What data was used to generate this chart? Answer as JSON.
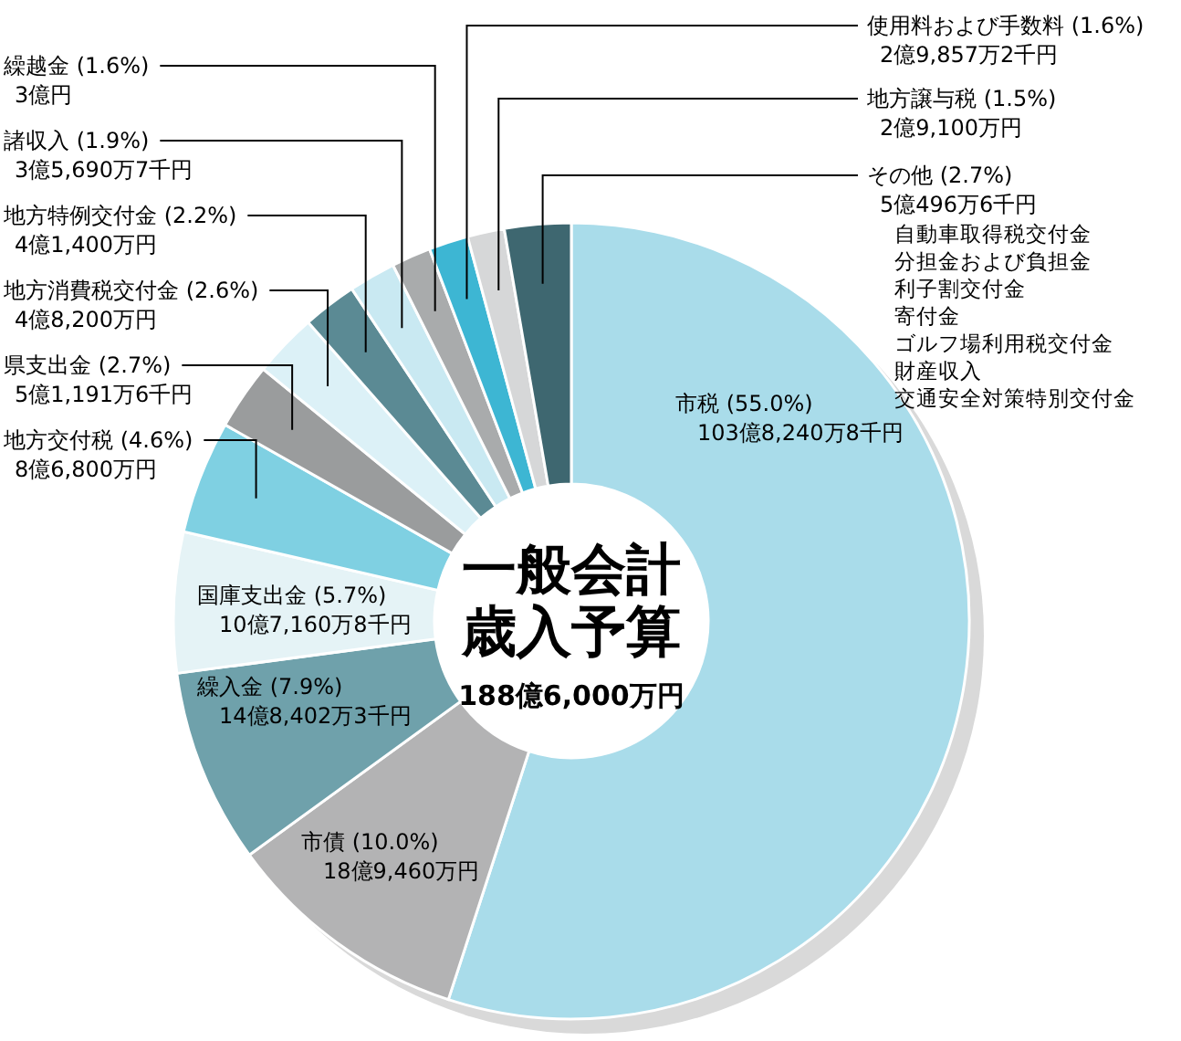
{
  "chart_data": {
    "type": "donut",
    "title": "一般会計歳入予算",
    "subtitle": "188億6,000万円",
    "categories": [
      "市税",
      "市債",
      "繰入金",
      "国庫支出金",
      "地方交付税",
      "県支出金",
      "地方消費税交付金",
      "地方特例交付金",
      "諸収入",
      "繰越金",
      "使用料および手数料",
      "地方譲与税",
      "その他"
    ],
    "values": [
      55.0,
      10.0,
      7.9,
      5.7,
      4.6,
      2.7,
      2.6,
      2.2,
      1.9,
      1.6,
      1.6,
      1.5,
      2.7
    ],
    "value_labels": [
      "(55.0%)",
      "(10.0%)",
      "(7.9%)",
      "(5.7%)",
      "(4.6%)",
      "(2.7%)",
      "(2.6%)",
      "(2.2%)",
      "(1.9%)",
      "(1.6%)",
      "(1.6%)",
      "(1.5%)",
      "(2.7%)"
    ],
    "colors": [
      "#a9dcea",
      "#b3b3b4",
      "#6fa1ab",
      "#e5f3f6",
      "#7fd0e2",
      "#9a9c9d",
      "#dcf1f7",
      "#5b8a94",
      "#c9e9f2",
      "#a9abac",
      "#3db6d3",
      "#d6d7d8",
      "#3e6770"
    ],
    "annotations": [
      "103億8,240万8千円",
      "18億9,460万円",
      "14億8,402万3千円",
      "10億7,160万8千円",
      "8億6,800万円",
      "5億1,191万6千円",
      "4億8,200万円",
      "4億1,400万円",
      "3億5,690万7千円",
      "3億円",
      "2億9,857万2千円",
      "2億9,100万円",
      "5億496万6千円",
      "自動車取得税交付金",
      "分担金および負担金",
      "利子割交付金",
      "寄付金",
      "ゴルフ場利用税交付金",
      "財産収入",
      "交通安全対策特別交付金"
    ]
  }
}
